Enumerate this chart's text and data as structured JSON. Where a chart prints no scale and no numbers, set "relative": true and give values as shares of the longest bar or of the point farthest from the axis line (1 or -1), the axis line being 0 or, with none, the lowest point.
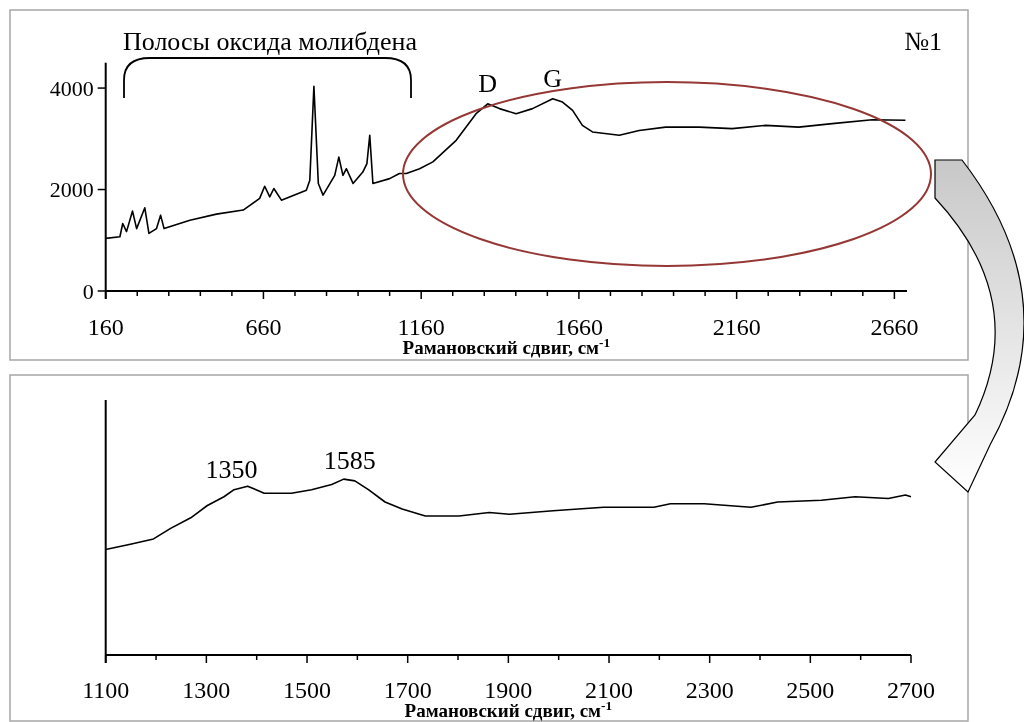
{
  "chart_data": [
    {
      "type": "line",
      "xlabel": "Рамановский сдвиг, см$^{-1}$",
      "x": [
        160,
        205,
        214,
        226,
        245,
        258,
        284,
        297,
        321,
        334,
        345,
        427,
        511,
        596,
        648,
        664,
        680,
        693,
        717,
        796,
        807,
        820,
        834,
        849,
        886,
        899,
        912,
        923,
        944,
        975,
        988,
        997,
        1007,
        1060,
        1091,
        1113,
        1155,
        1197,
        1271,
        1334,
        1371,
        1408,
        1461,
        1513,
        1577,
        1608,
        1640,
        1671,
        1703,
        1788,
        1851,
        1935,
        2041,
        2146,
        2252,
        2357,
        2463,
        2590,
        2695
      ],
      "values": [
        1037,
        1070,
        1330,
        1170,
        1575,
        1230,
        1640,
        1135,
        1230,
        1495,
        1230,
        1395,
        1515,
        1595,
        1825,
        2065,
        1855,
        2020,
        1790,
        1985,
        2185,
        4035,
        2120,
        1890,
        2280,
        2640,
        2280,
        2410,
        2120,
        2345,
        2510,
        3070,
        2120,
        2215,
        2315,
        2315,
        2410,
        2545,
        2970,
        3495,
        3690,
        3595,
        3495,
        3595,
        3790,
        3725,
        3560,
        3265,
        3135,
        3070,
        3165,
        3230,
        3230,
        3200,
        3265,
        3230,
        3300,
        3375,
        3365
      ],
      "color": "#000000",
      "xlim": [
        160,
        2700
      ],
      "ylim": [
        0,
        4500
      ],
      "yticks": [
        0,
        2000,
        4000
      ],
      "xticks": [
        160,
        {
          "value": 260,
          "label": null
        },
        {
          "value": 360,
          "label": null
        },
        {
          "value": 460,
          "label": null
        },
        {
          "value": 560,
          "label": null
        },
        660,
        {
          "value": 760,
          "label": null
        },
        {
          "value": 860,
          "label": null
        },
        {
          "value": 960,
          "label": null
        },
        {
          "value": 1060,
          "label": null
        },
        1160,
        {
          "value": 1260,
          "label": null
        },
        {
          "value": 1360,
          "label": null
        },
        {
          "value": 1460,
          "label": null
        },
        {
          "value": 1560,
          "label": null
        },
        1660,
        {
          "value": 1760,
          "label": null
        },
        {
          "value": 1860,
          "label": null
        },
        {
          "value": 1960,
          "label": null
        },
        {
          "value": 2060,
          "label": null
        },
        2160,
        {
          "value": 2260,
          "label": null
        },
        {
          "value": 2360,
          "label": null
        },
        {
          "value": 2460,
          "label": null
        },
        {
          "value": 2560,
          "label": null
        },
        2660
      ],
      "annotations": [
        "Полосы оксида молибдена",
        "№1",
        {
          "text": "D",
          "x": 1371,
          "y": 3690
        },
        {
          "text": "G",
          "x": 1577,
          "y": 3790
        }
      ]
    },
    {
      "type": "line",
      "xlabel": "Рамановский сдвиг, см$^{-1}$",
      "relative": true,
      "x": [
        1100,
        1149,
        1195,
        1229,
        1269,
        1302,
        1335,
        1355,
        1382,
        1415,
        1469,
        1509,
        1549,
        1573,
        1595,
        1622,
        1655,
        1689,
        1735,
        1802,
        1862,
        1902,
        1989,
        2089,
        2189,
        2222,
        2289,
        2382,
        2435,
        2522,
        2589,
        2655,
        2689,
        2700
      ],
      "values": [
        0.6,
        0.63,
        0.66,
        0.72,
        0.78,
        0.85,
        0.9,
        0.94,
        0.96,
        0.92,
        0.92,
        0.94,
        0.97,
        1,
        0.99,
        0.94,
        0.87,
        0.83,
        0.79,
        0.79,
        0.81,
        0.8,
        0.82,
        0.84,
        0.84,
        0.86,
        0.86,
        0.84,
        0.87,
        0.88,
        0.9,
        0.89,
        0.91,
        0.9
      ],
      "color": "#000000",
      "xlim": [
        1100,
        2700
      ],
      "xticks": [
        1100,
        {
          "value": 1200,
          "label": null
        },
        1300,
        {
          "value": 1400,
          "label": null
        },
        1500,
        {
          "value": 1600,
          "label": null
        },
        1700,
        {
          "value": 1800,
          "label": null
        },
        1900,
        {
          "value": 2000,
          "label": null
        },
        2100,
        {
          "value": 2200,
          "label": null
        },
        2300,
        {
          "value": 2400,
          "label": null
        },
        2500,
        {
          "value": 2600,
          "label": null
        },
        2700
      ],
      "annotations": [
        {
          "text": "1350",
          "x": 1350,
          "y": 0.94
        },
        {
          "text": "1585",
          "x": 1585,
          "y": 0.99
        }
      ]
    }
  ]
}
